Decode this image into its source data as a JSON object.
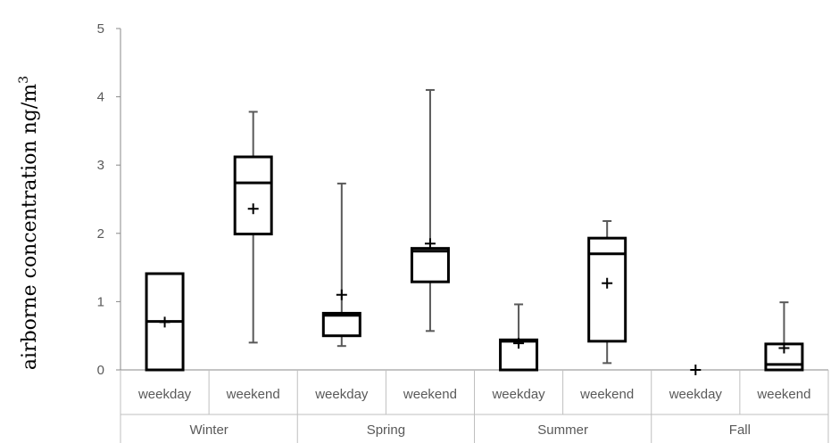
{
  "chart_data": {
    "type": "box",
    "title": "",
    "ylabel": "airborne concentration ng/m",
    "ylabel_superscript": "3",
    "ylim": [
      0,
      5
    ],
    "yticks": [
      "0",
      "1",
      "2",
      "3",
      "4",
      "5"
    ],
    "groups": [
      "Winter",
      "Spring",
      "Summer",
      "Fall"
    ],
    "categories": [
      "weekday",
      "weekend",
      "weekday",
      "weekend",
      "weekday",
      "weekend",
      "weekday",
      "weekend"
    ],
    "boxes": [
      {
        "group": "Winter",
        "category": "weekday",
        "min": 0,
        "q1": 0,
        "median": 0.71,
        "q3": 1.41,
        "max": 1.41,
        "mean": 0.7
      },
      {
        "group": "Winter",
        "category": "weekend",
        "min": 0.4,
        "q1": 1.99,
        "median": 2.74,
        "q3": 3.12,
        "max": 3.78,
        "mean": 2.36
      },
      {
        "group": "Spring",
        "category": "weekday",
        "min": 0.35,
        "q1": 0.5,
        "median": 0.8,
        "q3": 0.83,
        "max": 2.73,
        "mean": 1.1
      },
      {
        "group": "Spring",
        "category": "weekend",
        "min": 0.57,
        "q1": 1.29,
        "median": 1.74,
        "q3": 1.78,
        "max": 4.1,
        "mean": 1.85
      },
      {
        "group": "Summer",
        "category": "weekday",
        "min": 0,
        "q1": 0,
        "median": 0.42,
        "q3": 0.44,
        "max": 0.96,
        "mean": 0.39
      },
      {
        "group": "Summer",
        "category": "weekend",
        "min": 0.1,
        "q1": 0.42,
        "median": 1.7,
        "q3": 1.93,
        "max": 2.18,
        "mean": 1.27
      },
      {
        "group": "Fall",
        "category": "weekday",
        "min": 0,
        "q1": 0,
        "median": 0,
        "q3": 0,
        "max": 0,
        "mean": 0
      },
      {
        "group": "Fall",
        "category": "weekend",
        "min": 0,
        "q1": 0,
        "median": 0.08,
        "q3": 0.38,
        "max": 0.99,
        "mean": 0.32
      }
    ],
    "grid": false,
    "legend": "none"
  }
}
